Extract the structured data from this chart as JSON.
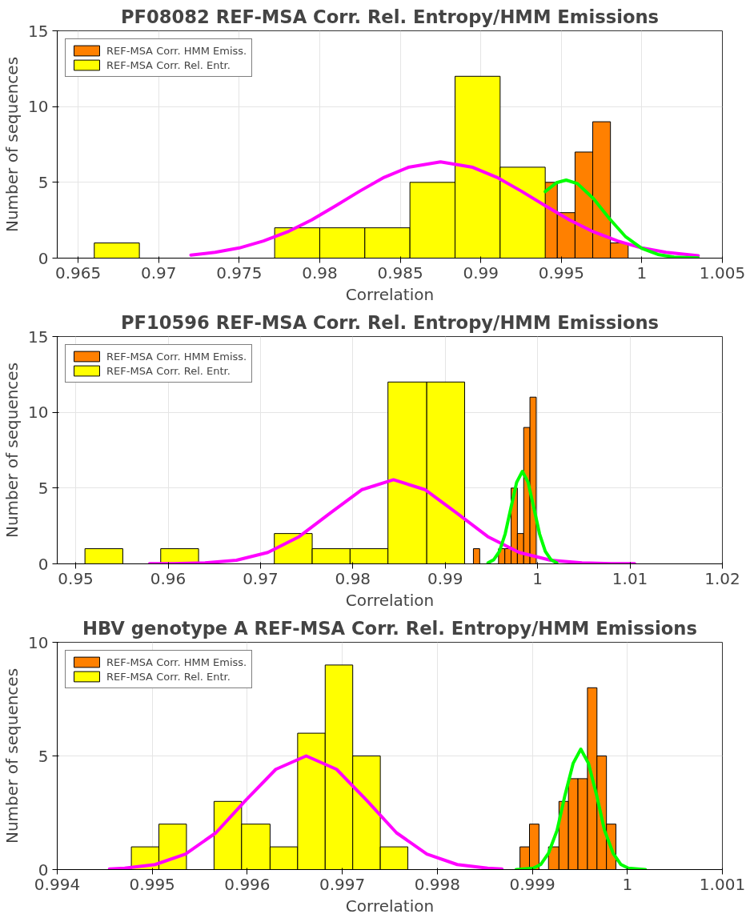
{
  "chart_data": [
    {
      "type": "histogram",
      "title": "PF08082 REF-MSA Corr. Rel. Entropy/HMM Emissions",
      "xlabel": "Correlation",
      "ylabel": "Number of sequences",
      "xlim": [
        0.9637,
        1.005
      ],
      "xticks": [
        0.965,
        0.97,
        0.975,
        0.98,
        0.985,
        0.99,
        0.995,
        1,
        1.005
      ],
      "ylim": [
        0,
        15
      ],
      "yticks": [
        0,
        5,
        10,
        15
      ],
      "grid": true,
      "legend": "top left",
      "series": [
        {
          "name": "REF-MSA Corr. HMM Emiss.",
          "color": "#ff8000",
          "bins": [
            0.99365,
            0.99475,
            0.99585,
            0.99695,
            0.99805,
            0.99915
          ],
          "values": [
            5,
            3,
            7,
            9,
            1
          ]
        },
        {
          "name": "REF-MSA Corr. Rel. Entr.",
          "color": "#ffff00",
          "bins": [
            0.966,
            0.9688,
            0.9772,
            0.98,
            0.9828,
            0.9856,
            0.9884,
            0.9912,
            0.994
          ],
          "values": [
            1,
            0,
            2,
            2,
            2,
            5,
            12,
            6
          ]
        },
        {
          "type": "line",
          "color": "#ff00ff",
          "x": [
            0.972,
            0.9735,
            0.975,
            0.9765,
            0.978,
            0.9795,
            0.981,
            0.9825,
            0.984,
            0.9855,
            0.9875,
            0.9895,
            0.991,
            0.9925,
            0.994,
            0.9955,
            0.997,
            0.9985,
            1.0,
            1.0015,
            1.0035
          ],
          "values": [
            0.2,
            0.38,
            0.67,
            1.13,
            1.73,
            2.52,
            3.46,
            4.43,
            5.33,
            5.99,
            6.35,
            5.99,
            5.33,
            4.43,
            3.46,
            2.52,
            1.73,
            1.13,
            0.67,
            0.38,
            0.16
          ]
        },
        {
          "type": "line",
          "color": "#00ff00",
          "x": [
            0.994,
            0.9947,
            0.9953,
            0.996,
            0.997,
            0.998,
            0.999,
            1.0,
            1.001,
            1.002,
            1.0035
          ],
          "values": [
            4.39,
            4.98,
            5.15,
            4.92,
            3.92,
            2.59,
            1.4,
            0.64,
            0.24,
            0.07,
            0.01
          ]
        }
      ]
    },
    {
      "type": "histogram",
      "title": "PF10596 REF-MSA Corr. Rel. Entropy/HMM Emissions",
      "xlabel": "Correlation",
      "ylabel": "Number of sequences",
      "xlim": [
        0.948,
        1.02
      ],
      "xticks": [
        0.95,
        0.96,
        0.97,
        0.98,
        0.99,
        1,
        1.01,
        1.02
      ],
      "ylim": [
        0,
        15
      ],
      "yticks": [
        0,
        5,
        10,
        15
      ],
      "grid": true,
      "legend": "top left",
      "series": [
        {
          "name": "REF-MSA Corr. HMM Emiss.",
          "color": "#ff8000",
          "bins": [
            0.99305,
            0.99373,
            0.99577,
            0.99645,
            0.99713,
            0.99781,
            0.99849,
            0.99917,
            0.99985
          ],
          "values": [
            1,
            0,
            1,
            1,
            5,
            2,
            9,
            11
          ]
        },
        {
          "name": "REF-MSA Corr. Rel. Entr.",
          "color": "#ffff00",
          "bins": [
            0.951,
            0.9551,
            0.9592,
            0.9633,
            0.9715,
            0.9756,
            0.9797,
            0.9838,
            0.988,
            0.9921
          ],
          "values": [
            1,
            0,
            1,
            0,
            2,
            1,
            1,
            12,
            12
          ]
        },
        {
          "type": "line",
          "color": "#ff00ff",
          "x": [
            0.958,
            0.9606,
            0.964,
            0.9674,
            0.9708,
            0.9742,
            0.9776,
            0.981,
            0.9844,
            0.9878,
            0.9912,
            0.9946,
            0.998,
            1.0014,
            1.0048,
            1.0082,
            1.0105
          ],
          "values": [
            0.01,
            0.01,
            0.06,
            0.24,
            0.75,
            1.8,
            3.37,
            4.9,
            5.55,
            4.9,
            3.37,
            1.8,
            0.75,
            0.24,
            0.06,
            0.01,
            0.01
          ]
        },
        {
          "type": "line",
          "color": "#00ff00",
          "x": [
            0.99463,
            0.99525,
            0.99587,
            0.99649,
            0.99711,
            0.99773,
            0.99835,
            0.99897,
            0.99959,
            1.00021,
            1.00083,
            1.00145,
            1.00207
          ],
          "values": [
            0.07,
            0.27,
            0.83,
            1.98,
            3.7,
            5.38,
            6.1,
            5.38,
            3.7,
            1.98,
            0.83,
            0.27,
            0.07
          ]
        }
      ]
    },
    {
      "type": "histogram",
      "title": "HBV genotype A REF-MSA Corr. Rel. Entropy/HMM Emissions",
      "xlabel": "Correlation",
      "ylabel": "Number of sequences",
      "xlim": [
        0.994,
        1.001
      ],
      "xticks": [
        0.994,
        0.995,
        0.996,
        0.997,
        0.998,
        0.999,
        1,
        1.001
      ],
      "ylim": [
        0,
        10
      ],
      "yticks": [
        0,
        5,
        10
      ],
      "grid": true,
      "legend": "top left",
      "series": [
        {
          "name": "REF-MSA Corr. HMM Emiss.",
          "color": "#ff8000",
          "bins": [
            0.99887,
            0.99897,
            0.99907,
            0.99917,
            0.99928,
            0.99938,
            0.99948,
            0.99958,
            0.99968,
            0.99978,
            0.99988
          ],
          "values": [
            1,
            2,
            0,
            1,
            3,
            4,
            4,
            8,
            5,
            2
          ]
        },
        {
          "name": "REF-MSA Corr. Rel. Entr.",
          "color": "#ffff00",
          "bins": [
            0.99478,
            0.99507,
            0.99536,
            0.99565,
            0.99594,
            0.99624,
            0.99653,
            0.99682,
            0.99711,
            0.9974,
            0.99769
          ],
          "values": [
            1,
            2,
            0,
            3,
            2,
            1,
            6,
            9,
            5,
            1
          ]
        },
        {
          "type": "line",
          "color": "#ff00ff",
          "x": [
            0.99455,
            0.99471,
            0.99503,
            0.99535,
            0.99567,
            0.99598,
            0.9963,
            0.99662,
            0.99694,
            0.99726,
            0.99757,
            0.99789,
            0.99821,
            0.99853,
            0.99868
          ],
          "values": [
            0.03,
            0.06,
            0.22,
            0.68,
            1.62,
            3.03,
            4.41,
            5.0,
            4.41,
            3.03,
            1.62,
            0.68,
            0.22,
            0.06,
            0.03
          ]
        },
        {
          "type": "line",
          "color": "#00ff00",
          "x": [
            0.99883,
            0.99901,
            0.99909,
            0.99917,
            0.99926,
            0.99934,
            0.99943,
            0.99951,
            0.99959,
            0.99968,
            0.99976,
            0.99985,
            0.99993,
            1.00001,
            1.00019
          ],
          "values": [
            0.0,
            0.06,
            0.23,
            0.72,
            1.72,
            3.21,
            4.68,
            5.3,
            4.68,
            3.21,
            1.72,
            0.72,
            0.23,
            0.06,
            0.0
          ]
        }
      ]
    }
  ]
}
